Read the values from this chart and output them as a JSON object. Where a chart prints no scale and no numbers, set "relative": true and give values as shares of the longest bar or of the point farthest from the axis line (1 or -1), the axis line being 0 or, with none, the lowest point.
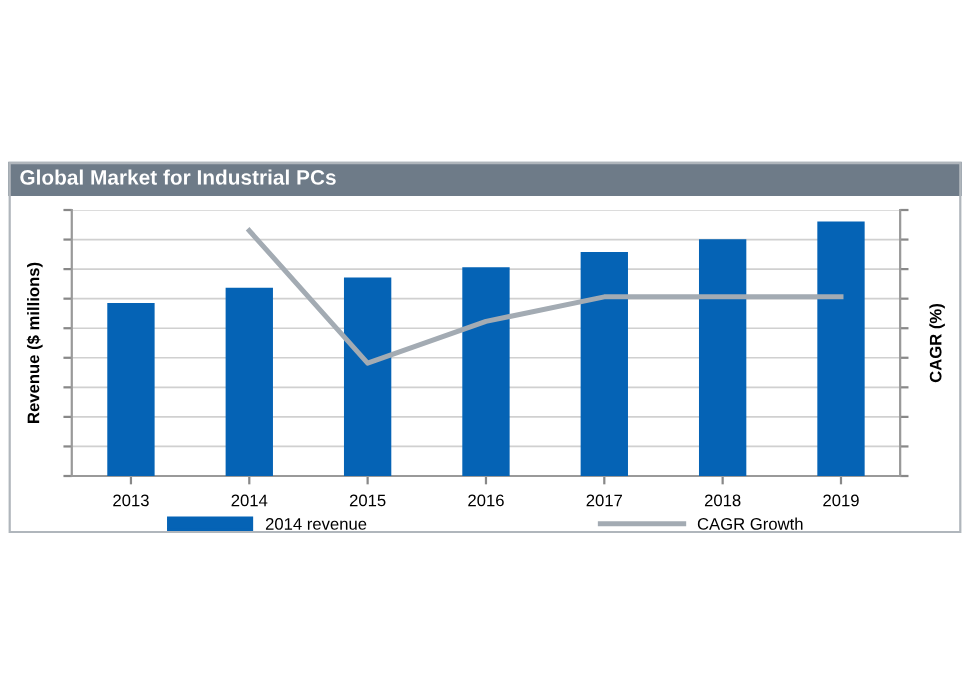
{
  "chart_data": {
    "type": "bar",
    "title": "Global Market for Industrial PCs",
    "ylabel": "Revenue ($ millions)",
    "y2label": "CAGR (%)",
    "relative": true,
    "categories": [
      "2013",
      "2014",
      "2015",
      "2016",
      "2017",
      "2018",
      "2019"
    ],
    "series": [
      {
        "name": "2014 revenue",
        "color": "#0563b5",
        "values": [
          0.68,
          0.74,
          0.78,
          0.82,
          0.88,
          0.93,
          1
        ]
      },
      {
        "name": "CAGR Growth",
        "type": "line",
        "axis": "y2",
        "color": "#a3abb3",
        "values": [
          null,
          1,
          0.46,
          0.63,
          0.73,
          0.73,
          0.73
        ]
      }
    ],
    "grid": "y",
    "legend": "bottom",
    "marker": "none"
  }
}
